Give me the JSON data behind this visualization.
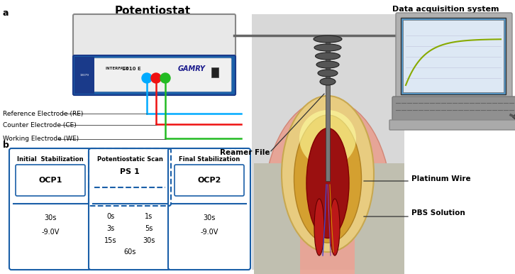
{
  "panel_a_label": "a",
  "panel_b_label": "b",
  "potentiostat_title": "Potentiostat",
  "das_title": "Data acquisition system",
  "electrode_labels": [
    "Reference Electrode (RE)",
    "Counter Electrode (CE)",
    "Working Electrode (WE)"
  ],
  "right_labels": [
    "Platinum Wire",
    "PBS Solution"
  ],
  "reamer_label": "Reamer File",
  "ocp1_label": "OCP1",
  "ocp2_label": "OCP2",
  "ps1_label": "PS 1",
  "init_stab_label": "Initial  Stabilization",
  "pot_scan_label": "Potentiostatic Scan",
  "final_stab_label": "Final Stabilization",
  "ocp1_data": [
    "30s",
    "-9.0V"
  ],
  "ps1_left": [
    "0s",
    "3s",
    "15s"
  ],
  "ps1_right": [
    "1s",
    "5s",
    "30s"
  ],
  "ps1_bottom": "60s",
  "ocp2_data": [
    "30s",
    "-9.0V"
  ],
  "bg_color": "#ffffff",
  "blue": "#1a5fa8",
  "electrode_colors": [
    "#00aaff",
    "#ee1111",
    "#22bb22"
  ],
  "gray_bg": "#d0d0d0"
}
